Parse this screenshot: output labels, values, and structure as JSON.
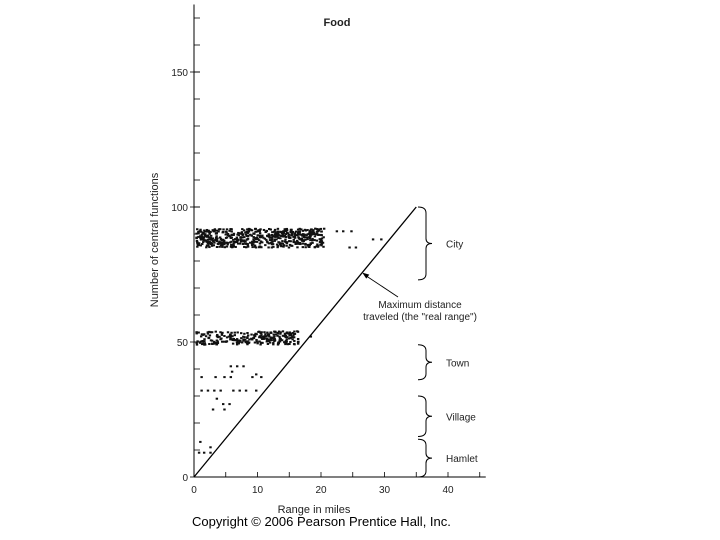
{
  "chart_data": {
    "type": "scatter",
    "title": "Food",
    "xlabel": "Range in miles",
    "ylabel": "Number of central functions",
    "xlim": [
      0,
      45
    ],
    "ylim": [
      0,
      175
    ],
    "xticks": [
      0,
      10,
      20,
      30,
      40
    ],
    "yticks": [
      0,
      50,
      100,
      150
    ],
    "grid": false,
    "points": [
      {
        "x": 0.8,
        "y": 9
      },
      {
        "x": 1.6,
        "y": 9
      },
      {
        "x": 2.6,
        "y": 9
      },
      {
        "x": 1.0,
        "y": 13
      },
      {
        "x": 2.6,
        "y": 11
      },
      {
        "x": 3.0,
        "y": 25
      },
      {
        "x": 4.8,
        "y": 25
      },
      {
        "x": 4.6,
        "y": 27
      },
      {
        "x": 5.6,
        "y": 27
      },
      {
        "x": 3.6,
        "y": 29
      },
      {
        "x": 1.2,
        "y": 32
      },
      {
        "x": 2.2,
        "y": 32
      },
      {
        "x": 3.2,
        "y": 32
      },
      {
        "x": 4.2,
        "y": 32
      },
      {
        "x": 6.2,
        "y": 32
      },
      {
        "x": 7.2,
        "y": 32
      },
      {
        "x": 8.2,
        "y": 32
      },
      {
        "x": 9.8,
        "y": 32
      },
      {
        "x": 1.2,
        "y": 37
      },
      {
        "x": 3.4,
        "y": 37
      },
      {
        "x": 4.8,
        "y": 37
      },
      {
        "x": 5.8,
        "y": 37
      },
      {
        "x": 9.2,
        "y": 37
      },
      {
        "x": 10.6,
        "y": 37
      },
      {
        "x": 6.0,
        "y": 39
      },
      {
        "x": 9.8,
        "y": 38
      },
      {
        "x": 5.8,
        "y": 41
      },
      {
        "x": 6.8,
        "y": 41
      },
      {
        "x": 7.8,
        "y": 41
      }
    ],
    "clusters": [
      {
        "label": "Town",
        "x_range": [
          0.4,
          16.5
        ],
        "y_range": [
          49,
          54
        ],
        "dots": 260
      },
      {
        "label": "City",
        "x_range": [
          0.4,
          20.5
        ],
        "y_range": [
          85,
          92
        ],
        "dots": 560
      }
    ],
    "outlier_points": [
      {
        "x": 18.4,
        "y": 52
      },
      {
        "x": 22.5,
        "y": 91
      },
      {
        "x": 23.5,
        "y": 91
      },
      {
        "x": 24.8,
        "y": 91
      },
      {
        "x": 28.2,
        "y": 88
      },
      {
        "x": 29.5,
        "y": 88
      },
      {
        "x": 24.5,
        "y": 85
      },
      {
        "x": 25.5,
        "y": 85
      }
    ],
    "line": {
      "x": [
        0,
        35
      ],
      "y": [
        0,
        100
      ]
    },
    "annotation": {
      "lines": [
        "Maximum distance",
        "traveled (the \"real range\")"
      ],
      "arrow_to": {
        "x": 26.5,
        "y": 75.7
      }
    },
    "brackets": [
      {
        "label": "City",
        "y_range": [
          73,
          100
        ]
      },
      {
        "label": "Town",
        "y_range": [
          36,
          49
        ]
      },
      {
        "label": "Village",
        "y_range": [
          15,
          30
        ]
      },
      {
        "label": "Hamlet",
        "y_range": [
          0,
          14
        ]
      }
    ]
  },
  "copyright": "Copyright © 2006 Pearson Prentice Hall, Inc."
}
